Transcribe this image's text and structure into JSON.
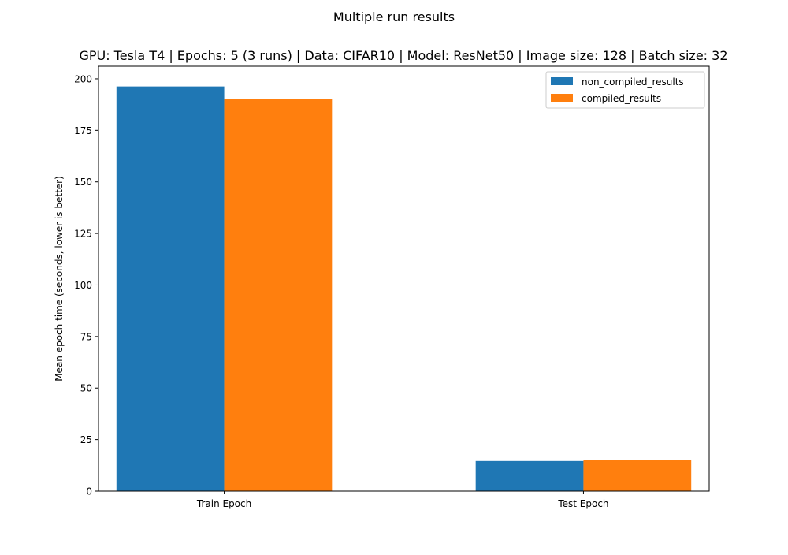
{
  "figure": {
    "suptitle": "Multiple run results",
    "title": "GPU: Tesla T4 | Epochs: 5 (3 runs) | Data: CIFAR10 | Model: ResNet50 | Image size: 128 | Batch size: 32"
  },
  "chart_data": {
    "type": "bar",
    "title": "GPU: Tesla T4 | Epochs: 5 (3 runs) | Data: CIFAR10 | Model: ResNet50 | Image size: 128 | Batch size: 32",
    "suptitle": "Multiple run results",
    "xlabel": "",
    "ylabel": "Mean epoch time (seconds, lower is better)",
    "categories": [
      "Train Epoch",
      "Test Epoch"
    ],
    "series": [
      {
        "name": "non_compiled_results",
        "color": "#1f77b4",
        "values": [
          196.3,
          14.6
        ]
      },
      {
        "name": "compiled_results",
        "color": "#ff7f0e",
        "values": [
          190.1,
          15.0
        ]
      }
    ],
    "ylim": [
      0,
      206.1
    ],
    "yticks": [
      0,
      25,
      50,
      75,
      100,
      125,
      150,
      175,
      200
    ],
    "grid": false,
    "legend_position": "top-right"
  }
}
